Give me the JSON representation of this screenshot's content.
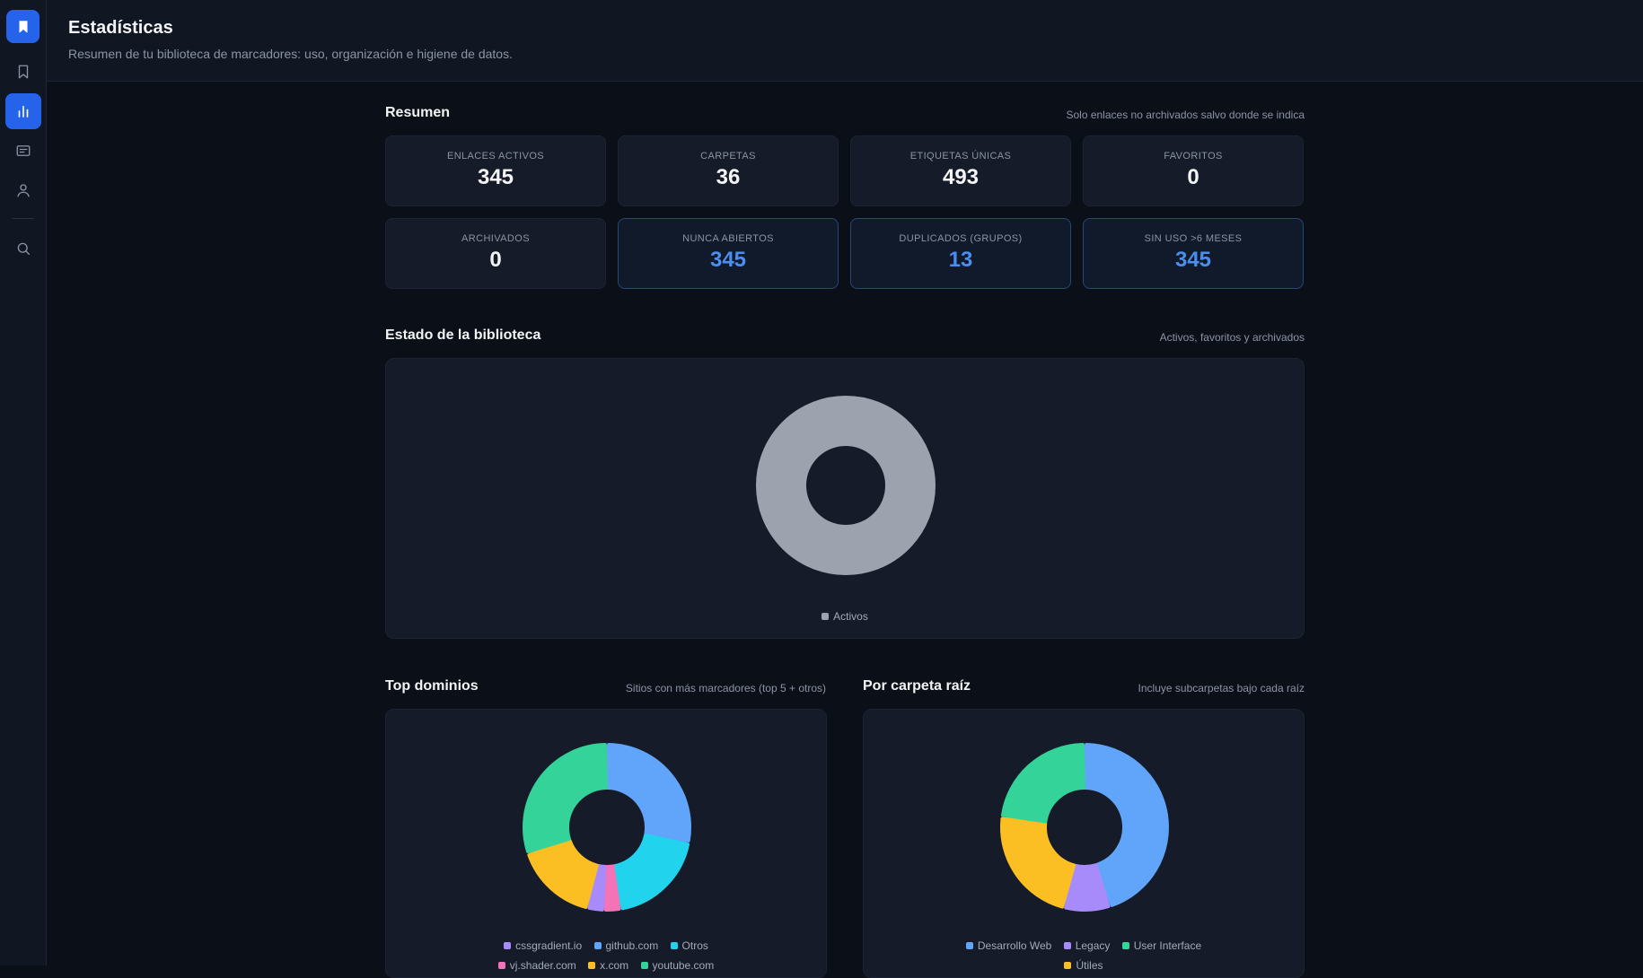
{
  "header": {
    "title": "Estadísticas",
    "subtitle": "Resumen de tu biblioteca de marcadores: uso, organización e higiene de datos."
  },
  "sidebar": {
    "items": [
      {
        "name": "logo",
        "icon": "bookmark-icon"
      },
      {
        "name": "bookmarks",
        "icon": "bookmark-outline-icon"
      },
      {
        "name": "stats",
        "icon": "bar-chart-icon"
      },
      {
        "name": "reader",
        "icon": "card-icon"
      },
      {
        "name": "profile",
        "icon": "user-icon"
      },
      {
        "name": "search",
        "icon": "search-icon"
      }
    ]
  },
  "resumen": {
    "title": "Resumen",
    "note": "Solo enlaces no archivados salvo donde se indica",
    "cards": [
      {
        "label": "ENLACES ACTIVOS",
        "value": "345",
        "highlight": false
      },
      {
        "label": "CARPETAS",
        "value": "36",
        "highlight": false
      },
      {
        "label": "ETIQUETAS ÚNICAS",
        "value": "493",
        "highlight": false
      },
      {
        "label": "FAVORITOS",
        "value": "0",
        "highlight": false
      },
      {
        "label": "ARCHIVADOS",
        "value": "0",
        "highlight": false
      },
      {
        "label": "NUNCA ABIERTOS",
        "value": "345",
        "highlight": true
      },
      {
        "label": "DUPLICADOS (GRUPOS)",
        "value": "13",
        "highlight": true
      },
      {
        "label": "SIN USO >6 MESES",
        "value": "345",
        "highlight": true
      }
    ]
  },
  "estado": {
    "title": "Estado de la biblioteca",
    "note": "Activos, favoritos y archivados",
    "legend": [
      "Activos"
    ]
  },
  "dominios": {
    "title": "Top dominios",
    "note": "Sitios con más marcadores (top 5 + otros)",
    "legend_row1": [
      "cssgradient.io",
      "github.com",
      "Otros"
    ],
    "legend_row2": [
      "vj.shader.com",
      "x.com",
      "youtube.com"
    ]
  },
  "carpetas": {
    "title": "Por carpeta raíz",
    "note": "Incluye subcarpetas bajo cada raíz",
    "legend_row1": [
      "Desarrollo Web",
      "Legacy",
      "User Interface"
    ],
    "legend_row2": [
      "Útiles"
    ]
  },
  "colors": {
    "accent": "#2563eb",
    "blue": "#60a5fa",
    "cyan": "#22d3ee",
    "purple": "#a78bfa",
    "pink": "#f472b6",
    "yellow": "#fbbf24",
    "green": "#34d399",
    "gray": "#9ca3af"
  },
  "chart_data": [
    {
      "type": "pie",
      "categories": [
        "Activos"
      ],
      "values": [
        345
      ]
    },
    {
      "type": "pie",
      "categories": [
        "github.com",
        "Otros",
        "vj.shader.com",
        "cssgradient.io",
        "x.com",
        "youtube.com"
      ],
      "values": [
        26,
        18,
        3,
        3,
        15,
        28
      ]
    },
    {
      "type": "pie",
      "categories": [
        "Desarrollo Web",
        "Legacy",
        "User Interface",
        "Útiles"
      ],
      "values": [
        45,
        9,
        23,
        23
      ]
    }
  ]
}
